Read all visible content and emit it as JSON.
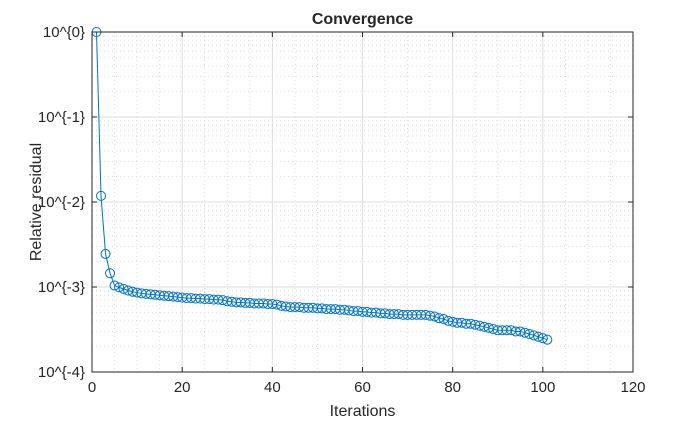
{
  "chart_data": {
    "type": "line",
    "title": "Convergence",
    "xlabel": "Iterations",
    "ylabel": "Relative residual",
    "xlim": [
      0,
      120
    ],
    "ylim": [
      0.0001,
      1
    ],
    "yscale": "log",
    "grid": true,
    "minor_grid": true,
    "x_ticks": [
      0,
      20,
      40,
      60,
      80,
      100,
      120
    ],
    "x_tick_labels": [
      "0",
      "20",
      "40",
      "60",
      "80",
      "100",
      "120"
    ],
    "y_ticks": [
      1,
      0.1,
      0.01,
      0.001,
      0.0001
    ],
    "y_tick_labels": [
      "10^{0}",
      "10^{-1}",
      "10^{-2}",
      "10^{-3}",
      "10^{-4}"
    ],
    "series": [
      {
        "color": "#0072BD",
        "marker": "circle",
        "x": [
          1,
          2,
          3,
          4,
          5,
          6,
          7,
          8,
          9,
          10,
          11,
          12,
          13,
          14,
          15,
          16,
          17,
          18,
          19,
          20,
          21,
          22,
          23,
          24,
          25,
          26,
          27,
          28,
          29,
          30,
          31,
          32,
          33,
          34,
          35,
          36,
          37,
          38,
          39,
          40,
          41,
          42,
          43,
          44,
          45,
          46,
          47,
          48,
          49,
          50,
          51,
          52,
          53,
          54,
          55,
          56,
          57,
          58,
          59,
          60,
          61,
          62,
          63,
          64,
          65,
          66,
          67,
          68,
          69,
          70,
          71,
          72,
          73,
          74,
          75,
          76,
          77,
          78,
          79,
          80,
          81,
          82,
          83,
          84,
          85,
          86,
          87,
          88,
          89,
          90,
          91,
          92,
          93,
          94,
          95,
          96,
          97,
          98,
          99,
          100,
          101
        ],
        "y": [
          1,
          0.0118,
          0.00245,
          0.00145,
          0.00104,
          0.00099,
          0.00095,
          0.00091,
          0.00088,
          0.00086,
          0.00084,
          0.00083,
          0.00082,
          0.00081,
          0.0008,
          0.00079,
          0.00078,
          0.00077,
          0.00076,
          0.00075,
          0.00074,
          0.00074,
          0.00073,
          0.00073,
          0.00072,
          0.00072,
          0.00071,
          0.00071,
          0.0007,
          0.00068,
          0.00067,
          0.00066,
          0.00066,
          0.00065,
          0.00065,
          0.00064,
          0.00064,
          0.00064,
          0.00063,
          0.00063,
          0.00062,
          0.0006,
          0.00059,
          0.00058,
          0.00058,
          0.00058,
          0.00057,
          0.00057,
          0.00057,
          0.00056,
          0.00056,
          0.00055,
          0.00055,
          0.00055,
          0.00054,
          0.00054,
          0.00053,
          0.00052,
          0.00052,
          0.00051,
          0.00051,
          0.0005,
          0.0005,
          0.00049,
          0.00049,
          0.00048,
          0.00048,
          0.00048,
          0.00047,
          0.00047,
          0.00047,
          0.00047,
          0.00047,
          0.00047,
          0.00046,
          0.00045,
          0.00043,
          0.00042,
          0.0004,
          0.00039,
          0.00038,
          0.00038,
          0.00037,
          0.00037,
          0.00036,
          0.00035,
          0.00034,
          0.00033,
          0.00032,
          0.00031,
          0.00031,
          0.00031,
          0.00031,
          0.0003,
          0.0003,
          0.00029,
          0.00028,
          0.00027,
          0.00026,
          0.00025,
          0.00024
        ]
      }
    ]
  }
}
